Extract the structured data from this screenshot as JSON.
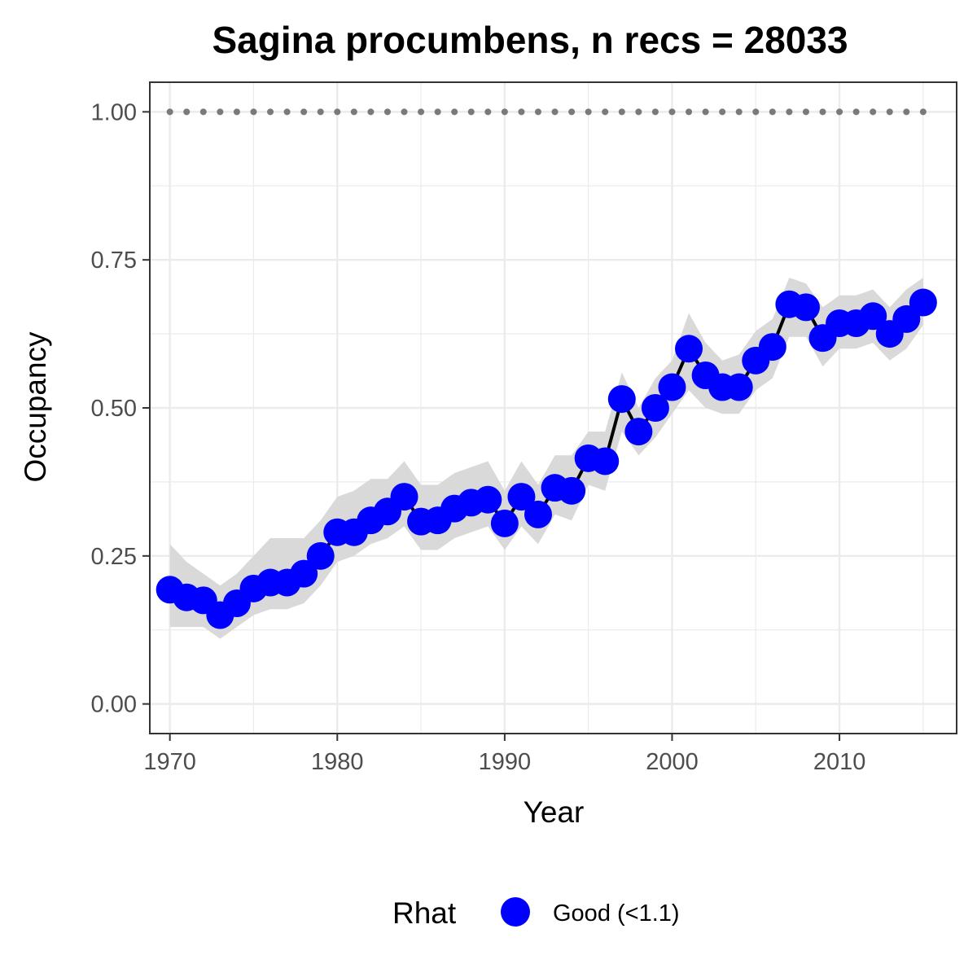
{
  "chart_data": {
    "type": "line",
    "title": "Sagina procumbens, n recs = 28033",
    "xlabel": "Year",
    "ylabel": "Occupancy",
    "xlim": [
      1968.8,
      2017
    ],
    "ylim": [
      -0.05,
      1.05
    ],
    "x_ticks": [
      1970,
      1980,
      1990,
      2000,
      2010
    ],
    "x_tick_labels": [
      "1970",
      "1980",
      "1990",
      "2000",
      "2010"
    ],
    "y_ticks": [
      0,
      0.25,
      0.5,
      0.75,
      1.0
    ],
    "y_tick_labels": [
      "0.00",
      "0.25",
      "0.50",
      "0.75",
      "1.00"
    ],
    "grid": true,
    "legend": {
      "title": "Rhat",
      "position": "bottom",
      "entries": [
        {
          "label": "Good (<1.1)",
          "color": "#0000ff"
        }
      ]
    },
    "colors": {
      "points": "#0000ff",
      "line": "#000000",
      "ribbon": "#d9d9d9",
      "reference": "#7a7a7a",
      "grid": "#ebebeb",
      "panel_border": "#333333"
    },
    "reference_line": {
      "y": 1.0,
      "style": "dotted"
    },
    "series": [
      {
        "rhat": "Good (<1.1)",
        "x": [
          1970,
          1971,
          1972,
          1973,
          1974,
          1975,
          1976,
          1977,
          1978,
          1979,
          1980,
          1981,
          1982,
          1983,
          1984,
          1985,
          1986,
          1987,
          1988,
          1989,
          1990,
          1991,
          1992,
          1993,
          1994,
          1995,
          1996,
          1997,
          1998,
          1999,
          2000,
          2001,
          2002,
          2003,
          2004,
          2005,
          2006,
          2007,
          2008,
          2009,
          2010,
          2011,
          2012,
          2013,
          2014,
          2015
        ],
        "y": [
          0.193,
          0.18,
          0.175,
          0.15,
          0.17,
          0.195,
          0.205,
          0.205,
          0.22,
          0.25,
          0.29,
          0.29,
          0.31,
          0.325,
          0.35,
          0.308,
          0.31,
          0.33,
          0.34,
          0.345,
          0.305,
          0.35,
          0.32,
          0.365,
          0.36,
          0.415,
          0.41,
          0.515,
          0.46,
          0.5,
          0.535,
          0.6,
          0.555,
          0.535,
          0.535,
          0.58,
          0.603,
          0.675,
          0.67,
          0.618,
          0.643,
          0.643,
          0.655,
          0.625,
          0.65,
          0.678
        ],
        "lower": [
          0.13,
          0.13,
          0.13,
          0.11,
          0.13,
          0.15,
          0.16,
          0.16,
          0.17,
          0.2,
          0.24,
          0.25,
          0.27,
          0.28,
          0.3,
          0.26,
          0.26,
          0.28,
          0.29,
          0.3,
          0.26,
          0.3,
          0.27,
          0.32,
          0.31,
          0.37,
          0.36,
          0.46,
          0.42,
          0.45,
          0.49,
          0.53,
          0.5,
          0.49,
          0.49,
          0.53,
          0.55,
          0.62,
          0.62,
          0.57,
          0.6,
          0.6,
          0.61,
          0.58,
          0.6,
          0.64
        ],
        "upper": [
          0.27,
          0.24,
          0.22,
          0.2,
          0.22,
          0.25,
          0.28,
          0.28,
          0.28,
          0.31,
          0.35,
          0.36,
          0.38,
          0.38,
          0.41,
          0.37,
          0.37,
          0.39,
          0.4,
          0.41,
          0.36,
          0.41,
          0.37,
          0.42,
          0.42,
          0.46,
          0.46,
          0.56,
          0.5,
          0.55,
          0.58,
          0.66,
          0.61,
          0.58,
          0.59,
          0.63,
          0.65,
          0.72,
          0.71,
          0.67,
          0.69,
          0.69,
          0.7,
          0.67,
          0.7,
          0.72
        ]
      }
    ]
  }
}
